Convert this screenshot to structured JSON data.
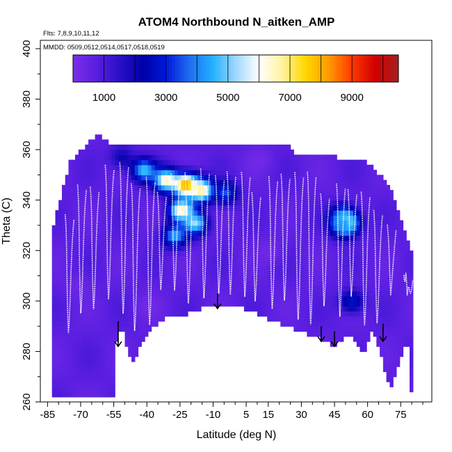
{
  "chart_data": {
    "type": "heatmap",
    "title": "ATOM4 Northbound N_aitken_AMP",
    "subtitle_flights": "Flts: 7,8,9,10,11,12",
    "subtitle_dates": "MMDD: 0509,0512,0514,0517,0518,0519",
    "xlabel": "Latitude (deg N)",
    "ylabel": "Theta (C)",
    "xlim": [
      -87,
      85
    ],
    "ylim": [
      260,
      400
    ],
    "x_ticks": [
      -85,
      -70,
      -55,
      -40,
      -25,
      -10,
      5,
      15,
      30,
      45,
      60,
      75
    ],
    "y_ticks": [
      260,
      280,
      300,
      320,
      340,
      360,
      380,
      400
    ],
    "colorbar": {
      "range": [
        0,
        10500
      ],
      "ticks": [
        1000,
        3000,
        5000,
        7000,
        9000
      ],
      "colors": [
        "#7a2ee8",
        "#5a1ee0",
        "#2a10c8",
        "#0000a8",
        "#0018d8",
        "#1f6cf0",
        "#22b0ff",
        "#9fd8ff",
        "#ffffff",
        "#fff3a0",
        "#ffd700",
        "#ff9a00",
        "#ff3800",
        "#d00000",
        "#a52020"
      ]
    },
    "terrain_floor": [
      {
        "lat": -83,
        "theta": 262
      },
      {
        "lat": -55,
        "theta": 262
      },
      {
        "lat": -55,
        "theta": 283
      },
      {
        "lat": -51,
        "theta": 289
      },
      {
        "lat": -47,
        "theta": 275
      },
      {
        "lat": -40,
        "theta": 287
      },
      {
        "lat": -30,
        "theta": 295
      },
      {
        "lat": -22,
        "theta": 295
      },
      {
        "lat": -10,
        "theta": 299
      },
      {
        "lat": 2,
        "theta": 298
      },
      {
        "lat": 20,
        "theta": 291
      },
      {
        "lat": 38,
        "theta": 285
      },
      {
        "lat": 45,
        "theta": 282
      },
      {
        "lat": 52,
        "theta": 287
      },
      {
        "lat": 58,
        "theta": 279
      },
      {
        "lat": 62,
        "theta": 289
      },
      {
        "lat": 65,
        "theta": 282
      },
      {
        "lat": 70,
        "theta": 265
      },
      {
        "lat": 78,
        "theta": 285
      },
      {
        "lat": 80,
        "theta": 262
      }
    ],
    "domain_top": [
      {
        "lat": -83,
        "theta": 328
      },
      {
        "lat": -75,
        "theta": 355
      },
      {
        "lat": -63,
        "theta": 366
      },
      {
        "lat": -55,
        "theta": 362
      },
      {
        "lat": -40,
        "theta": 362
      },
      {
        "lat": -25,
        "theta": 363
      },
      {
        "lat": -10,
        "theta": 362
      },
      {
        "lat": 25,
        "theta": 362
      },
      {
        "lat": 26,
        "theta": 359
      },
      {
        "lat": 40,
        "theta": 358
      },
      {
        "lat": 60,
        "theta": 355
      },
      {
        "lat": 70,
        "theta": 346
      },
      {
        "lat": 80,
        "theta": 320
      }
    ],
    "hotspots": [
      {
        "lat": -52,
        "theta": 357,
        "value": 2000
      },
      {
        "lat": -42,
        "theta": 352,
        "value": 4800
      },
      {
        "lat": -32,
        "theta": 348,
        "value": 6500
      },
      {
        "lat": -23,
        "theta": 346,
        "value": 8500
      },
      {
        "lat": -16,
        "theta": 344,
        "value": 7000
      },
      {
        "lat": -25,
        "theta": 336,
        "value": 6800
      },
      {
        "lat": -19,
        "theta": 331,
        "value": 5400
      },
      {
        "lat": -28,
        "theta": 326,
        "value": 4500
      },
      {
        "lat": -5,
        "theta": 343,
        "value": 3500
      },
      {
        "lat": 48,
        "theta": 334,
        "value": 3600
      },
      {
        "lat": 50,
        "theta": 331,
        "value": 6000
      },
      {
        "lat": 48,
        "theta": 330,
        "value": 4200
      },
      {
        "lat": 52,
        "theta": 300,
        "value": 2800
      },
      {
        "lat": -72,
        "theta": 306,
        "value": 300
      },
      {
        "lat": 15,
        "theta": 320,
        "value": 200
      },
      {
        "lat": -40,
        "theta": 298,
        "value": 200
      },
      {
        "lat": 10,
        "theta": 356,
        "value": 200
      }
    ],
    "arrows": [
      {
        "lat": -53,
        "theta": 292,
        "to": 282
      },
      {
        "lat": -8,
        "theta": 303,
        "to": 297
      },
      {
        "lat": 39,
        "theta": 290,
        "to": 284
      },
      {
        "lat": 45,
        "theta": 288,
        "to": 282
      },
      {
        "lat": 67,
        "theta": 291,
        "to": 284
      }
    ]
  }
}
